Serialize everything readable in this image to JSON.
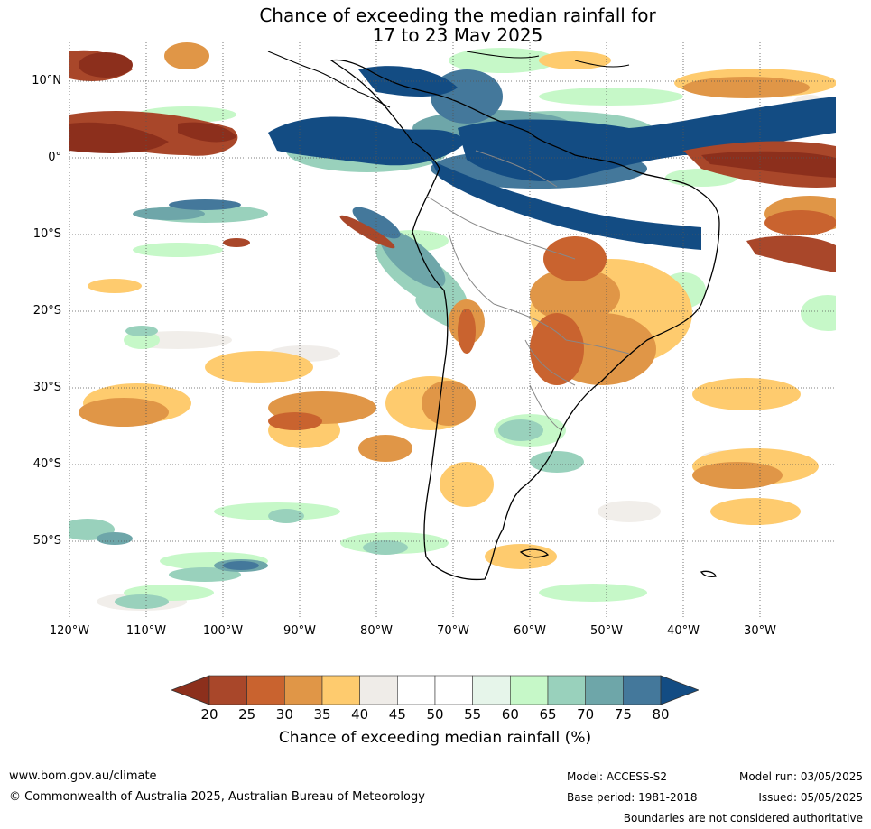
{
  "title": {
    "line1": "Chance of exceeding the median rainfall for",
    "line2": "17 to 23 May 2025"
  },
  "map": {
    "latitude_labels": [
      "10°N",
      "0°",
      "10°S",
      "20°S",
      "30°S",
      "40°S",
      "50°S"
    ],
    "longitude_labels": [
      "120°W",
      "110°W",
      "100°W",
      "90°W",
      "80°W",
      "70°W",
      "60°W",
      "50°W",
      "40°W",
      "30°W"
    ]
  },
  "legend": {
    "ticks": [
      "20",
      "25",
      "30",
      "35",
      "40",
      "45",
      "50",
      "55",
      "60",
      "65",
      "70",
      "75",
      "80"
    ],
    "colors": [
      "#8c2f1c",
      "#a9472a",
      "#c9632f",
      "#e09647",
      "#fecb6e",
      "#efece8",
      "#ffffff",
      "#ffffff",
      "#e6f5ea",
      "#c6f8c8",
      "#99d1bc",
      "#6ea6a9",
      "#44789b",
      "#134c83"
    ],
    "label": "Chance of exceeding median rainfall (%)"
  },
  "footer": {
    "website": "www.bom.gov.au/climate",
    "copyright": "© Commonwealth of Australia 2025, Australian Bureau of Meteorology",
    "model": "Model: ACCESS-S2",
    "base_period": "Base period: 1981-2018",
    "model_run": "Model run: 03/05/2025",
    "issued": "Issued: 05/05/2025",
    "disclaimer": "Boundaries are not considered authoritative"
  }
}
